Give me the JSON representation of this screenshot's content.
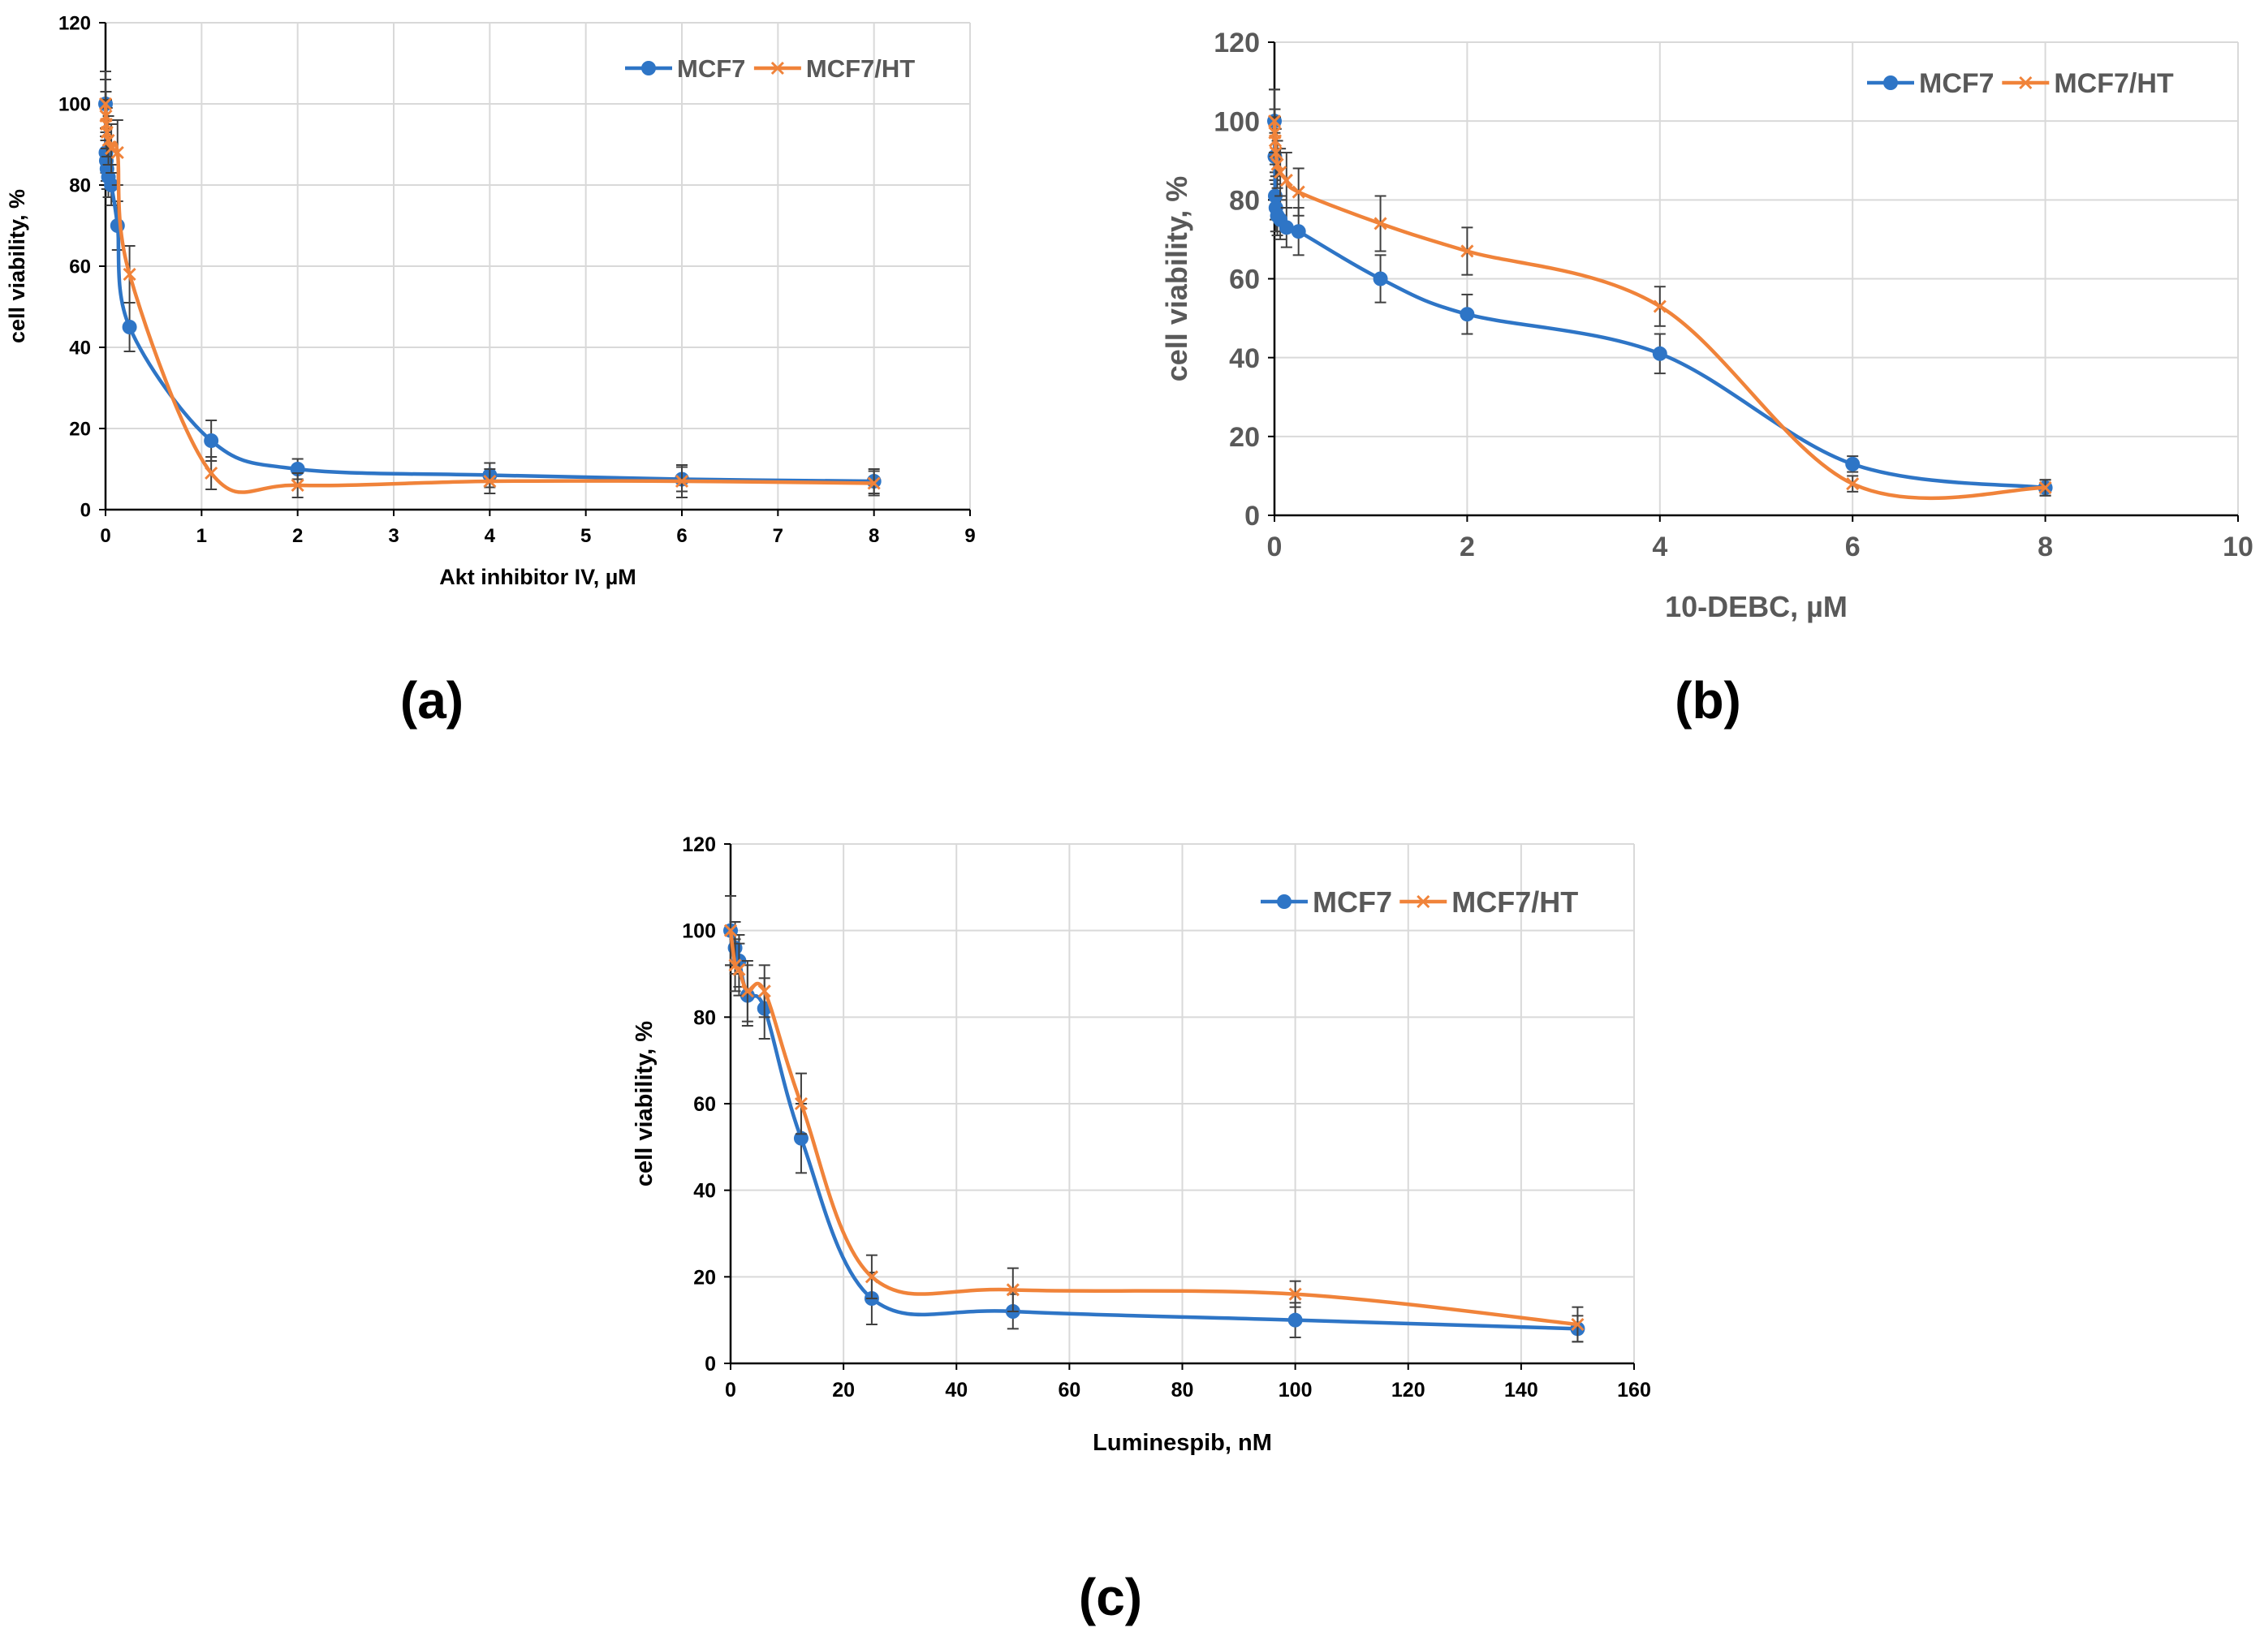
{
  "chart_data": [
    {
      "type": "line",
      "panel_label": "(a)",
      "title": "",
      "xlabel": "Akt inhibitor IV, µM",
      "ylabel": "cell viability, %",
      "xlim": [
        0,
        9
      ],
      "ylim": [
        0,
        120
      ],
      "xticks": [
        "0",
        "1",
        "2",
        "3",
        "4",
        "5",
        "6",
        "7",
        "8",
        "9"
      ],
      "yticks": [
        "0",
        "20",
        "40",
        "60",
        "80",
        "100",
        "120"
      ],
      "grid": true,
      "legend": "top-right",
      "series": [
        {
          "name": "MCF7",
          "color": "#2E75C6",
          "marker": "circle",
          "x": [
            0,
            0.004,
            0.008,
            0.015,
            0.03,
            0.06,
            0.125,
            0.25,
            1.1,
            2,
            4,
            6,
            8
          ],
          "y": [
            100,
            88,
            86,
            84,
            82,
            80,
            70,
            45,
            17,
            10,
            8.5,
            7.5,
            7
          ],
          "err": [
            6,
            5,
            5,
            5,
            5,
            5,
            6,
            6,
            5,
            2.5,
            3,
            3,
            3
          ]
        },
        {
          "name": "MCF7/HT",
          "color": "#F0833A",
          "marker": "x",
          "x": [
            0,
            0.004,
            0.008,
            0.015,
            0.03,
            0.06,
            0.125,
            0.25,
            1.1,
            2,
            4,
            6,
            8
          ],
          "y": [
            100,
            97,
            95,
            93,
            91,
            89,
            88,
            58,
            9,
            6,
            7,
            7,
            6.5
          ],
          "err": [
            8,
            6,
            6,
            6,
            6,
            6,
            8,
            7,
            4,
            3,
            3,
            4,
            3
          ]
        }
      ]
    },
    {
      "type": "line",
      "panel_label": "(b)",
      "title": "",
      "xlabel": "10-DEBC, µM",
      "ylabel": "cell viability, %",
      "xlim": [
        0,
        10
      ],
      "ylim": [
        0,
        120
      ],
      "xticks": [
        "0",
        "2",
        "4",
        "6",
        "8",
        "10"
      ],
      "yticks": [
        "0",
        "20",
        "40",
        "60",
        "80",
        "100",
        "120"
      ],
      "grid": true,
      "legend": "top-right",
      "series": [
        {
          "name": "MCF7",
          "color": "#2E75C6",
          "marker": "circle",
          "x": [
            0,
            0.004,
            0.008,
            0.015,
            0.03,
            0.06,
            0.125,
            0.25,
            1.1,
            2,
            4,
            6,
            8
          ],
          "y": [
            100,
            91,
            81,
            78,
            76,
            75,
            73,
            72,
            60,
            51,
            41,
            13,
            7
          ],
          "err": [
            8,
            6,
            6,
            6,
            5,
            5,
            5,
            6,
            6,
            5,
            5,
            2,
            2
          ]
        },
        {
          "name": "MCF7/HT",
          "color": "#F0833A",
          "marker": "x",
          "x": [
            0,
            0.004,
            0.008,
            0.015,
            0.03,
            0.06,
            0.125,
            0.25,
            1.1,
            2,
            4,
            6,
            8
          ],
          "y": [
            100,
            97,
            95,
            92,
            89,
            87,
            85,
            82,
            74,
            67,
            53,
            8,
            7
          ],
          "err": [
            8,
            6,
            6,
            6,
            6,
            6,
            7,
            6,
            7,
            6,
            5,
            2,
            2
          ]
        }
      ]
    },
    {
      "type": "line",
      "panel_label": "(c)",
      "title": "",
      "xlabel": "Luminespib, nM",
      "ylabel": "cell viability, %",
      "xlim": [
        0,
        160
      ],
      "ylim": [
        0,
        120
      ],
      "xticks": [
        "0",
        "20",
        "40",
        "60",
        "80",
        "100",
        "120",
        "140",
        "160"
      ],
      "yticks": [
        "0",
        "20",
        "40",
        "60",
        "80",
        "100",
        "120"
      ],
      "grid": true,
      "legend": "top-right",
      "series": [
        {
          "name": "MCF7",
          "color": "#2E75C6",
          "marker": "circle",
          "x": [
            0,
            0.8,
            1.5,
            3,
            6,
            12.5,
            25,
            50,
            100,
            150
          ],
          "y": [
            100,
            96,
            93,
            85,
            82,
            52,
            15,
            12,
            10,
            8
          ],
          "err": [
            8,
            6,
            6,
            7,
            7,
            8,
            6,
            4,
            4,
            3
          ]
        },
        {
          "name": "MCF7/HT",
          "color": "#F0833A",
          "marker": "x",
          "x": [
            0,
            0.8,
            1.5,
            3,
            6,
            12.5,
            25,
            50,
            100,
            150
          ],
          "y": [
            100,
            92,
            91,
            86,
            86,
            60,
            20,
            17,
            16,
            9
          ],
          "err": [
            8,
            6,
            6,
            7,
            6,
            7,
            5,
            5,
            3,
            4
          ]
        }
      ]
    }
  ]
}
